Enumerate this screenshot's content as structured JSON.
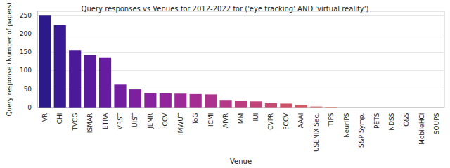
{
  "chart_data": {
    "type": "bar",
    "title": "Query responses vs Venues for 2012-2022 for ('eye tracking' AND 'virtual reality')",
    "x_label": "Venue",
    "y_label": "Query response (Number of papers)",
    "categories": [
      "VR",
      "CHI",
      "TVCG",
      "ISMAR",
      "ETRA",
      "VRST",
      "UIST",
      "JEMR",
      "ICCV",
      "IMWUT",
      "ToG",
      "ICMI",
      "AIVR",
      "MM",
      "IUI",
      "CVPR",
      "ECCV",
      "AAAI",
      "USENIX Sec.",
      "TIFS",
      "NeurIPS",
      "S&P Symp.",
      "PETS",
      "NDSS",
      "C&S",
      "MobileHCI",
      "SOUPS"
    ],
    "values": [
      250,
      224,
      156,
      143,
      136,
      62,
      49,
      39,
      38,
      37,
      36,
      35,
      20,
      18,
      16,
      11,
      10,
      6,
      2,
      1,
      0,
      0,
      0,
      0,
      0,
      0,
      0
    ],
    "colors": [
      "#2c1a8a",
      "#3a1a92",
      "#4b1a98",
      "#5a1a9c",
      "#661c9e",
      "#731ea0",
      "#7d20a0",
      "#88229f",
      "#92259c",
      "#9b2998",
      "#a42d93",
      "#ac328d",
      "#b43787",
      "#bb3d80",
      "#c24379",
      "#c84a72",
      "#ce516a",
      "#d45862",
      "#d9605b",
      "#de6854",
      "#e2714d",
      "#e67a46",
      "#ea8340",
      "#ed8c3a",
      "#f09534",
      "#f29f2f",
      "#f4a92a"
    ],
    "ylim": [
      0,
      262
    ],
    "yticks": [
      0,
      50,
      100,
      150,
      200,
      250
    ],
    "grid": true
  }
}
